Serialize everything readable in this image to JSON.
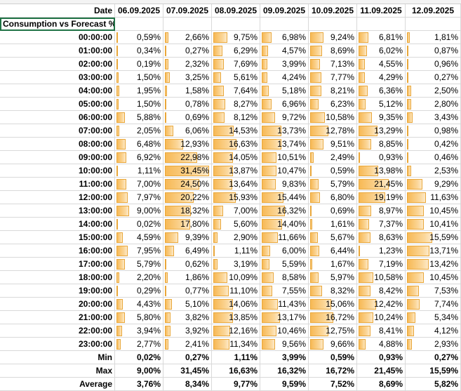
{
  "header_label": "Date",
  "subheader_label": "Consumption vs Forecast %",
  "dates": [
    "06.09.2025",
    "07.09.2025",
    "08.09.2025",
    "09.09.2025",
    "10.09.2025",
    "11.09.2025",
    "12.09.2025"
  ],
  "hours": [
    "00:00:00",
    "01:00:00",
    "02:00:00",
    "03:00:00",
    "04:00:00",
    "05:00:00",
    "06:00:00",
    "07:00:00",
    "08:00:00",
    "09:00:00",
    "10:00:00",
    "11:00:00",
    "12:00:00",
    "13:00:00",
    "14:00:00",
    "15:00:00",
    "16:00:00",
    "17:00:00",
    "18:00:00",
    "19:00:00",
    "20:00:00",
    "21:00:00",
    "22:00:00",
    "23:00:00"
  ],
  "values": [
    [
      "0,59%",
      "2,66%",
      "9,75%",
      "6,98%",
      "9,24%",
      "6,81%",
      "1,81%"
    ],
    [
      "0,34%",
      "0,27%",
      "6,29%",
      "4,57%",
      "8,69%",
      "6,02%",
      "0,87%"
    ],
    [
      "0,19%",
      "2,32%",
      "7,69%",
      "3,99%",
      "7,13%",
      "4,55%",
      "0,96%"
    ],
    [
      "1,50%",
      "3,25%",
      "5,61%",
      "4,24%",
      "7,77%",
      "4,29%",
      "0,27%"
    ],
    [
      "1,95%",
      "1,58%",
      "7,64%",
      "5,18%",
      "8,21%",
      "6,36%",
      "2,50%"
    ],
    [
      "1,50%",
      "0,78%",
      "8,27%",
      "6,96%",
      "6,23%",
      "5,12%",
      "2,80%"
    ],
    [
      "5,88%",
      "0,69%",
      "8,12%",
      "9,72%",
      "10,58%",
      "9,35%",
      "3,43%"
    ],
    [
      "2,05%",
      "6,06%",
      "14,53%",
      "13,73%",
      "12,78%",
      "13,29%",
      "0,98%"
    ],
    [
      "6,48%",
      "12,93%",
      "16,63%",
      "13,74%",
      "9,51%",
      "8,85%",
      "0,42%"
    ],
    [
      "6,92%",
      "22,98%",
      "14,05%",
      "10,51%",
      "2,49%",
      "0,93%",
      "0,46%"
    ],
    [
      "1,11%",
      "31,45%",
      "13,87%",
      "10,47%",
      "0,59%",
      "13,98%",
      "2,53%"
    ],
    [
      "7,00%",
      "24,50%",
      "13,64%",
      "9,83%",
      "5,79%",
      "21,45%",
      "9,29%"
    ],
    [
      "7,97%",
      "20,22%",
      "15,93%",
      "15,44%",
      "6,80%",
      "19,19%",
      "11,63%"
    ],
    [
      "9,00%",
      "18,32%",
      "7,00%",
      "16,32%",
      "0,69%",
      "8,97%",
      "10,45%"
    ],
    [
      "0,02%",
      "17,80%",
      "5,60%",
      "14,40%",
      "1,61%",
      "7,37%",
      "10,41%"
    ],
    [
      "4,59%",
      "9,39%",
      "2,90%",
      "11,66%",
      "5,67%",
      "8,63%",
      "15,59%"
    ],
    [
      "7,95%",
      "6,49%",
      "1,11%",
      "6,00%",
      "6,44%",
      "1,23%",
      "13,71%"
    ],
    [
      "5,79%",
      "0,62%",
      "3,19%",
      "5,59%",
      "1,67%",
      "7,19%",
      "13,42%"
    ],
    [
      "2,20%",
      "1,86%",
      "10,09%",
      "8,58%",
      "5,97%",
      "10,58%",
      "10,45%"
    ],
    [
      "0,29%",
      "0,77%",
      "11,10%",
      "7,55%",
      "8,32%",
      "8,42%",
      "7,53%"
    ],
    [
      "4,43%",
      "5,10%",
      "14,06%",
      "11,43%",
      "15,06%",
      "12,42%",
      "7,74%"
    ],
    [
      "5,80%",
      "3,82%",
      "13,85%",
      "13,17%",
      "16,72%",
      "10,24%",
      "5,34%"
    ],
    [
      "3,94%",
      "3,92%",
      "12,16%",
      "10,46%",
      "12,75%",
      "8,41%",
      "4,12%"
    ],
    [
      "2,77%",
      "2,41%",
      "11,34%",
      "9,56%",
      "9,66%",
      "4,88%",
      "2,93%"
    ]
  ],
  "summary": [
    {
      "label": "Min",
      "values": [
        "0,02%",
        "0,27%",
        "1,11%",
        "3,99%",
        "0,59%",
        "0,93%",
        "0,27%"
      ]
    },
    {
      "label": "Max",
      "values": [
        "9,00%",
        "31,45%",
        "16,63%",
        "16,32%",
        "16,72%",
        "21,45%",
        "15,59%"
      ]
    },
    {
      "label": "Average",
      "values": [
        "3,76%",
        "8,34%",
        "9,77%",
        "9,59%",
        "7,52%",
        "8,69%",
        "5,82%"
      ]
    }
  ],
  "colors": {
    "bar_fill": "#f7b955",
    "bar_border": "#e9a73a",
    "grid": "#d9d9d9",
    "selection": "#217346"
  }
}
